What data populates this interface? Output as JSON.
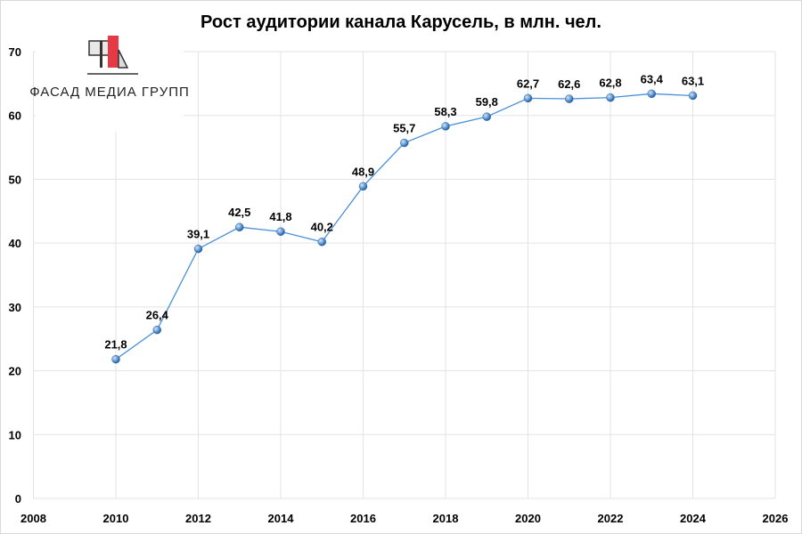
{
  "chart_data": {
    "type": "line",
    "title": "Рост аудитории канала Карусель, в млн. чел.",
    "xlabel": "",
    "ylabel": "",
    "xlim": [
      2008,
      2026
    ],
    "ylim": [
      0,
      70
    ],
    "x_ticks": [
      2008,
      2010,
      2012,
      2014,
      2016,
      2018,
      2020,
      2022,
      2024,
      2026
    ],
    "y_ticks": [
      0,
      10,
      20,
      30,
      40,
      50,
      60,
      70
    ],
    "grid": true,
    "legend": "none",
    "series": [
      {
        "x": [
          2010,
          2011,
          2012,
          2013,
          2014,
          2015,
          2016,
          2017,
          2018,
          2019,
          2020,
          2021,
          2022,
          2023,
          2024
        ],
        "values": [
          21.8,
          26.4,
          39.1,
          42.5,
          41.8,
          40.2,
          48.9,
          55.7,
          58.3,
          59.8,
          62.7,
          62.6,
          62.8,
          63.4,
          63.1
        ],
        "labels": [
          "21,8",
          "26,4",
          "39,1",
          "42,5",
          "41,8",
          "40,2",
          "48,9",
          "55,7",
          "58,3",
          "59,8",
          "62,7",
          "62,6",
          "62,8",
          "63,4",
          "63,1"
        ],
        "color": "#4a90d9"
      }
    ]
  },
  "logo": {
    "text": "ФАСАД МЕДИА ГРУПП",
    "accent": "#e63946"
  }
}
